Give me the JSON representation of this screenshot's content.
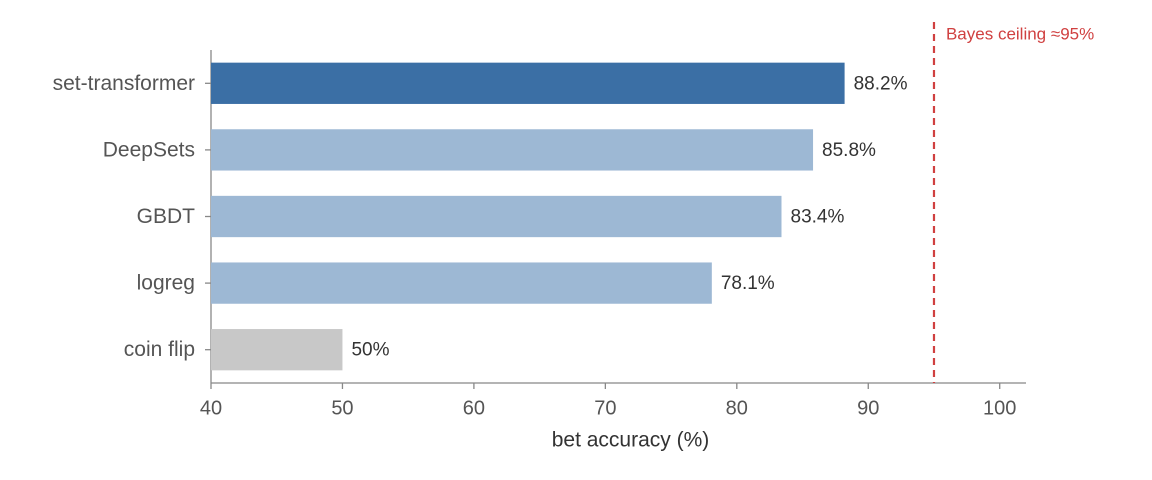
{
  "chart_data": {
    "type": "hbar",
    "categories": [
      "set-transformer",
      "DeepSets",
      "GBDT",
      "logreg",
      "coin flip"
    ],
    "values": [
      88.2,
      85.8,
      83.4,
      78.1,
      50
    ],
    "value_labels": [
      "88.2%",
      "85.8%",
      "83.4%",
      "78.1%",
      "50%"
    ],
    "colors": [
      "#3b6fa5",
      "#9db8d4",
      "#9db8d4",
      "#9db8d4",
      "#c8c8c8"
    ],
    "xlabel": "bet accuracy (%)",
    "xlim": [
      40,
      102
    ],
    "xticks": [
      40,
      50,
      60,
      70,
      80,
      90,
      100
    ],
    "reference_line": {
      "value": 95,
      "label": "Bayes ceiling ≈95%",
      "color": "#d04040"
    }
  }
}
